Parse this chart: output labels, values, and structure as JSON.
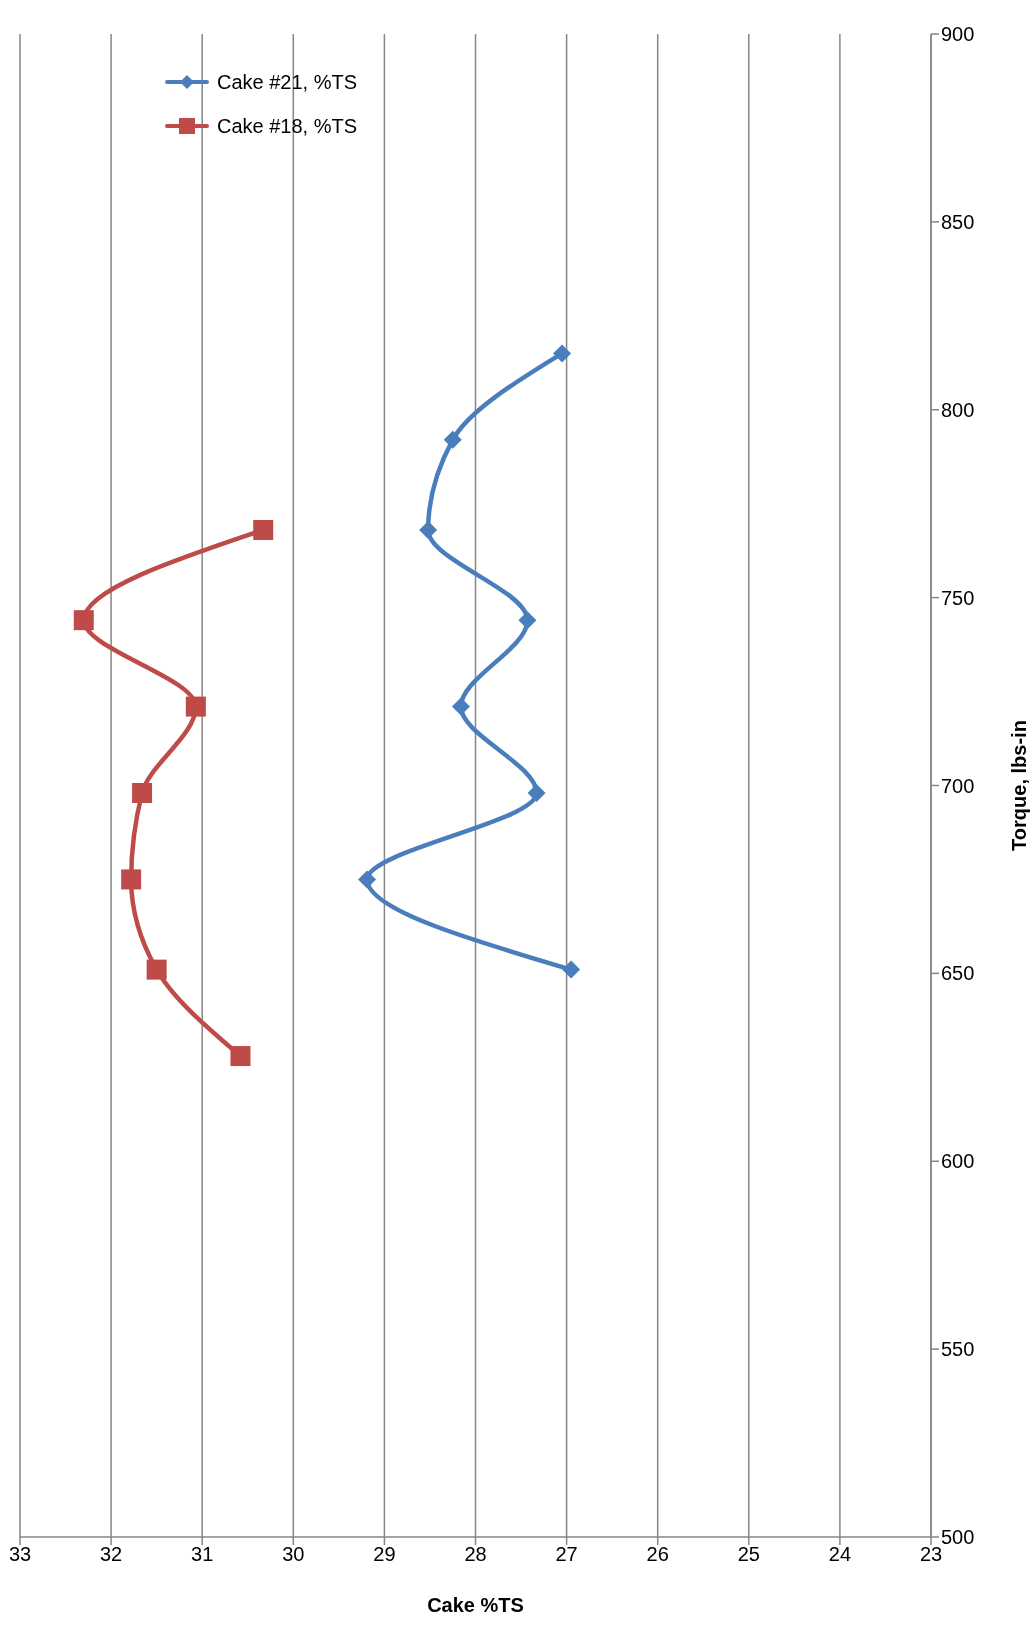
{
  "chart_data": {
    "type": "line",
    "xlabel": "Cake %TS",
    "y2label": "Torque, lbs-in",
    "xlim": [
      33,
      23
    ],
    "xticks": [
      33,
      32,
      31,
      30,
      29,
      28,
      27,
      26,
      25,
      24,
      23
    ],
    "y2lim": [
      500,
      900
    ],
    "y2ticks": [
      500,
      550,
      600,
      650,
      700,
      750,
      800,
      850,
      900
    ],
    "grid": "x",
    "legend": "top left",
    "line_style": "solid",
    "series": [
      {
        "name": "Cake #21, %TS",
        "color": "#4a7ebb",
        "marker": "diamond",
        "axis": "y2",
        "x": [
          26.95,
          29.19,
          27.33,
          28.16,
          27.43,
          28.52,
          28.25,
          27.05
        ],
        "values": [
          651,
          675,
          698,
          721,
          744,
          768,
          792,
          815
        ]
      },
      {
        "name": "Cake #18, %TS",
        "color": "#be4b48",
        "marker": "square",
        "axis": "y2",
        "x": [
          30.58,
          31.5,
          31.78,
          31.66,
          31.07,
          32.3,
          30.33
        ],
        "values": [
          628,
          651,
          675,
          698,
          721,
          744,
          768
        ]
      }
    ]
  }
}
